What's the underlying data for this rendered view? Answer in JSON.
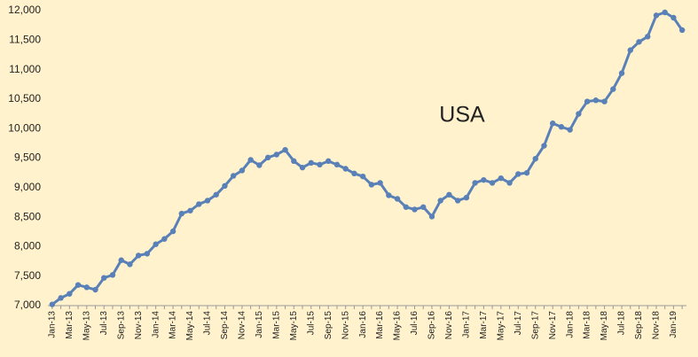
{
  "chart_data": {
    "type": "line",
    "annotation": "USA",
    "categories": [
      "Jan-13",
      null,
      "Mar-13",
      null,
      "May-13",
      null,
      "Jul-13",
      null,
      "Sep-13",
      null,
      "Nov-13",
      null,
      "Jan-14",
      null,
      "Mar-14",
      null,
      "May-14",
      null,
      "Jul-14",
      null,
      "Sep-14",
      null,
      "Nov-14",
      null,
      "Jan-15",
      null,
      "Mar-15",
      null,
      "May-15",
      null,
      "Jul-15",
      null,
      "Sep-15",
      null,
      "Nov-15",
      null,
      "Jan-16",
      null,
      "Mar-16",
      null,
      "May-16",
      null,
      "Jul-16",
      null,
      "Sep-16",
      null,
      "Nov-16",
      null,
      "Jan-17",
      null,
      "Mar-17",
      null,
      "May-17",
      null,
      "Jul-17",
      null,
      "Sep-17",
      null,
      "Nov-17",
      null,
      "Jan-18",
      null,
      "Mar-18",
      null,
      "May-18",
      null,
      "Jul-18",
      null,
      "Sep-18",
      null,
      "Nov-18",
      null,
      "Jan-19",
      null
    ],
    "values": [
      7020,
      7130,
      7200,
      7350,
      7310,
      7270,
      7470,
      7520,
      7770,
      7700,
      7850,
      7880,
      8040,
      8130,
      8260,
      8560,
      8610,
      8720,
      8780,
      8880,
      9030,
      9200,
      9290,
      9470,
      9380,
      9510,
      9560,
      9640,
      9450,
      9340,
      9420,
      9390,
      9450,
      9390,
      9320,
      9240,
      9190,
      9050,
      9080,
      8870,
      8810,
      8670,
      8630,
      8670,
      8510,
      8780,
      8880,
      8780,
      8830,
      9080,
      9130,
      9080,
      9160,
      9080,
      9230,
      9250,
      9490,
      9710,
      10090,
      10030,
      9980,
      10250,
      10460,
      10480,
      10460,
      10670,
      10940,
      11330,
      11470,
      11560,
      11920,
      11970,
      11880,
      11670
    ],
    "color": "#5a80b8",
    "ylim": [
      7000,
      12000
    ],
    "yticks": [
      {
        "value": 7000,
        "label": "7,000"
      },
      {
        "value": 7500,
        "label": "7,500"
      },
      {
        "value": 8000,
        "label": "8,000"
      },
      {
        "value": 8500,
        "label": "8,500"
      },
      {
        "value": 9000,
        "label": "9,000"
      },
      {
        "value": 9500,
        "label": "9,500"
      },
      {
        "value": 10000,
        "label": "10,000"
      },
      {
        "value": 10500,
        "label": "10,500"
      },
      {
        "value": 11000,
        "label": "11,000"
      },
      {
        "value": 11500,
        "label": "11,500"
      },
      {
        "value": 12000,
        "label": "12,000"
      }
    ],
    "grid": false
  }
}
